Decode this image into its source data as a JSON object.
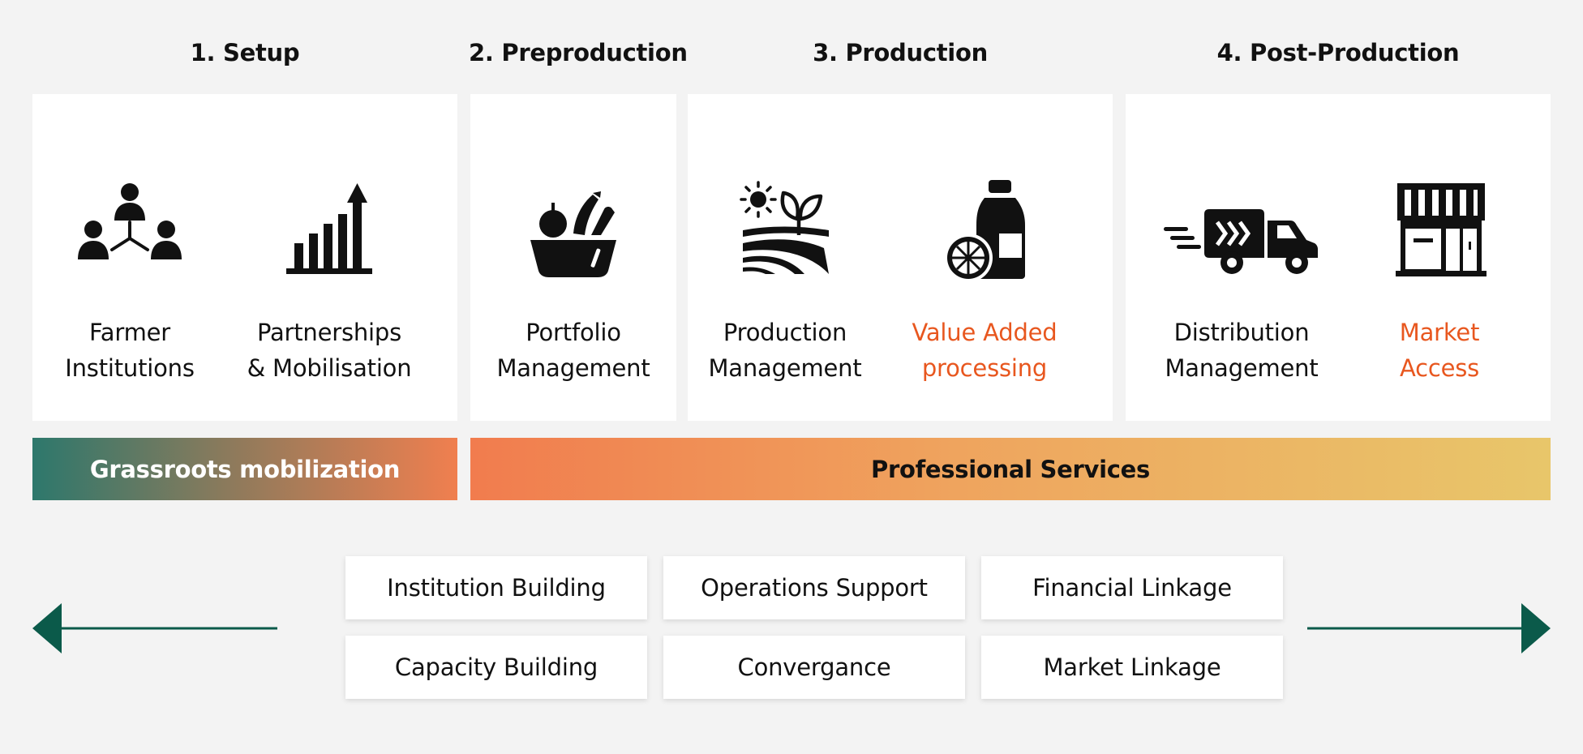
{
  "stages": [
    {
      "title": "1. Setup"
    },
    {
      "title": "2. Preproduction"
    },
    {
      "title": "3. Production"
    },
    {
      "title": "4. Post-Production"
    }
  ],
  "items": {
    "farmer": {
      "line1": "Farmer",
      "line2": "Institutions",
      "icon": "people-network-icon"
    },
    "partnerships": {
      "line1": "Partnerships",
      "line2": "& Mobilisation",
      "icon": "growth-chart-icon"
    },
    "portfolio": {
      "line1": "Portfolio",
      "line2": "Management",
      "icon": "produce-basket-icon"
    },
    "production": {
      "line1": "Production",
      "line2": "Management",
      "icon": "farm-field-icon"
    },
    "value_added": {
      "line1": "Value Added",
      "line2": "processing",
      "icon": "juice-bottle-icon",
      "accent": true
    },
    "distribution": {
      "line1": "Distribution",
      "line2": "Management",
      "icon": "delivery-truck-icon"
    },
    "market_access": {
      "line1": "Market",
      "line2": "Access",
      "icon": "storefront-icon",
      "accent": true
    }
  },
  "bands": {
    "grassroots": "Grassroots mobilization",
    "professional": "Professional Services"
  },
  "services": [
    "Institution Building",
    "Operations Support",
    "Financial Linkage",
    "Capacity Building",
    "Convergance",
    "Market Linkage"
  ],
  "colors": {
    "accent": "#e8571f",
    "arrow": "#0b5a4a",
    "grass_start": "#2d786c",
    "grass_end": "#f07f4f",
    "pro_start": "#f17c4e",
    "pro_end": "#e8c66a"
  }
}
